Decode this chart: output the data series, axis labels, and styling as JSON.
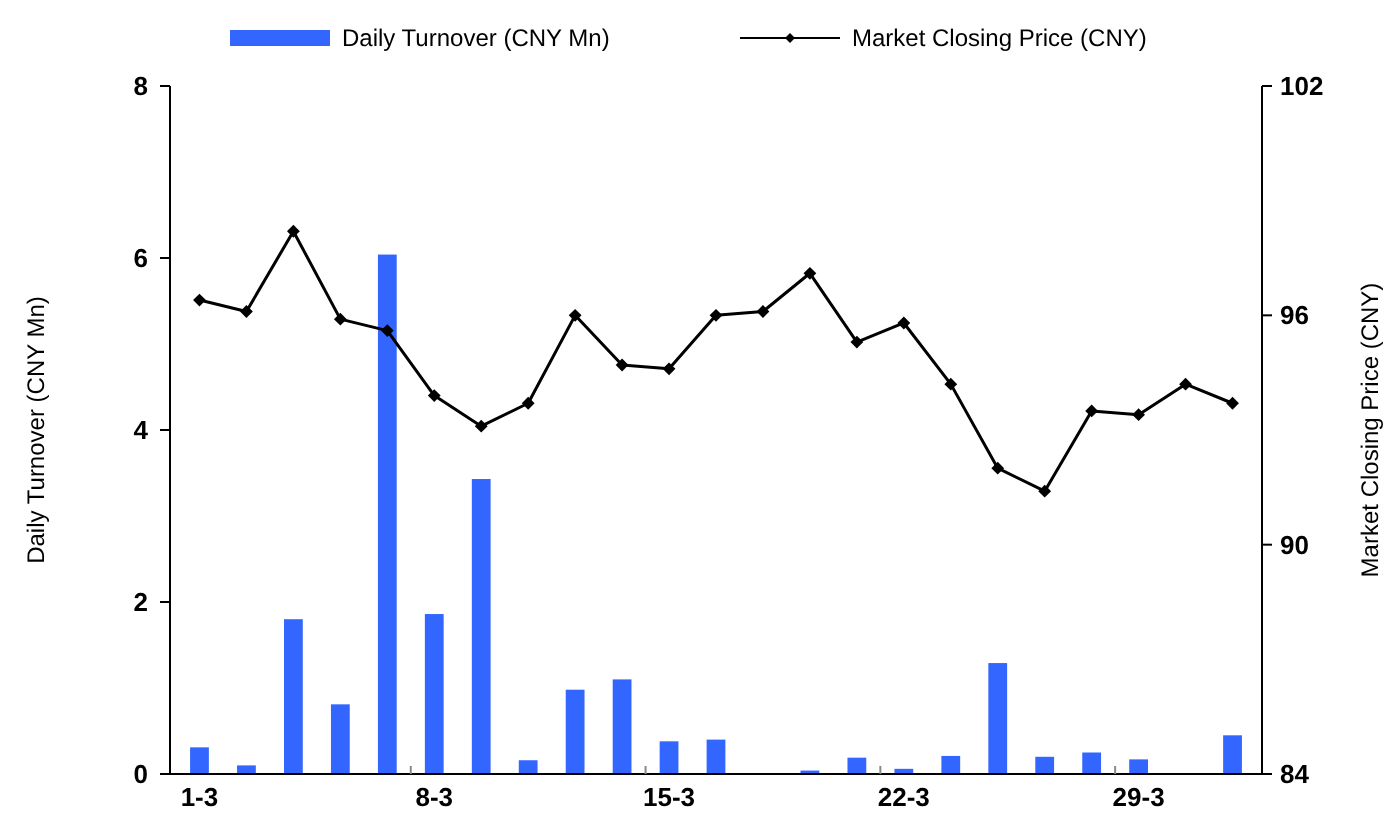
{
  "chart_data": {
    "type": "bar",
    "categories": [
      "1-3",
      null,
      null,
      null,
      null,
      "8-3",
      null,
      null,
      null,
      null,
      "15-3",
      null,
      null,
      null,
      null,
      "22-3",
      null,
      null,
      null,
      null,
      "29-3",
      null,
      null
    ],
    "series": [
      {
        "name": "Daily Turnover (CNY Mn)",
        "color": "#3366ff",
        "values": [
          0.31,
          0.1,
          1.8,
          0.81,
          6.04,
          1.86,
          3.43,
          0.16,
          0.98,
          1.1,
          0.38,
          0.4,
          0,
          0.04,
          0.19,
          0.06,
          0.21,
          1.29,
          0.2,
          0.25,
          0.17,
          0,
          0.45
        ]
      },
      {
        "name": "Market Closing Price (CNY)",
        "type": "line",
        "axis": "y2",
        "color": "#000000",
        "marker": "diamond",
        "values": [
          96.4,
          96.1,
          98.2,
          95.9,
          95.6,
          93.9,
          93.1,
          93.7,
          96.0,
          94.7,
          94.6,
          96.0,
          96.1,
          97.1,
          95.3,
          95.8,
          94.2,
          92.0,
          91.4,
          93.5,
          93.4,
          94.2,
          93.7
        ]
      }
    ],
    "ylabel": "Daily Turnover (CNY Mn)",
    "y2label": "Market Closing Price (CNY)",
    "ylim": [
      0,
      8
    ],
    "yticks": [
      0,
      2,
      4,
      6,
      8
    ],
    "y2lim": [
      84,
      102
    ],
    "y2ticks": [
      84,
      90,
      96,
      102
    ],
    "grid": false,
    "legend": "top"
  }
}
